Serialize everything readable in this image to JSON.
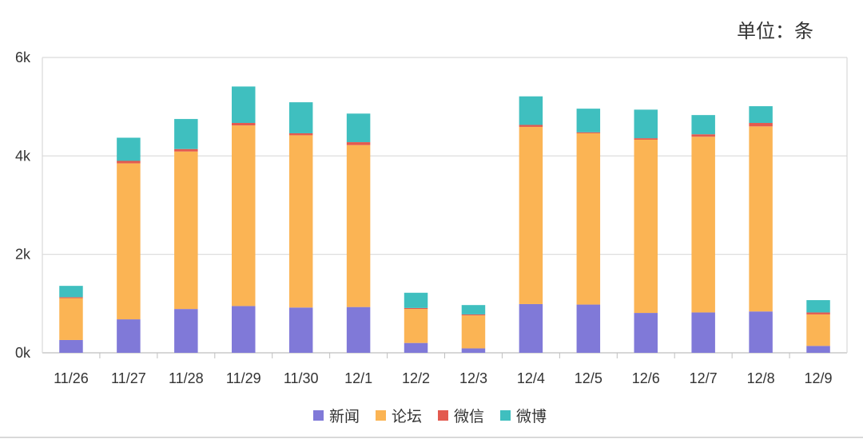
{
  "unit_label": "单位：条",
  "colors": {
    "新闻": "#8079d8",
    "论坛": "#fbb454",
    "微信": "#e35a4f",
    "微博": "#3fbfbf",
    "grid": "#d9d9d9",
    "axis": "#bfbfbf"
  },
  "chart_data": {
    "type": "bar",
    "stacked": true,
    "categories": [
      "11/26",
      "11/27",
      "11/28",
      "11/29",
      "11/30",
      "12/1",
      "12/2",
      "12/3",
      "12/4",
      "12/5",
      "12/6",
      "12/7",
      "12/8",
      "12/9"
    ],
    "series": [
      {
        "name": "新闻",
        "values": [
          260,
          680,
          890,
          950,
          920,
          930,
          200,
          90,
          990,
          980,
          810,
          820,
          840,
          140
        ]
      },
      {
        "name": "论坛",
        "values": [
          850,
          3170,
          3200,
          3670,
          3500,
          3290,
          690,
          670,
          3600,
          3480,
          3520,
          3570,
          3760,
          640
        ]
      },
      {
        "name": "微信",
        "values": [
          20,
          50,
          50,
          50,
          40,
          60,
          20,
          20,
          40,
          20,
          30,
          50,
          70,
          40
        ]
      },
      {
        "name": "微博",
        "values": [
          230,
          470,
          610,
          740,
          630,
          580,
          310,
          190,
          580,
          480,
          580,
          390,
          340,
          250
        ]
      }
    ],
    "yticks": [
      "0k",
      "2k",
      "4k",
      "6k"
    ],
    "ylim": [
      0,
      6000
    ],
    "grid": true,
    "legend": "bottom"
  }
}
